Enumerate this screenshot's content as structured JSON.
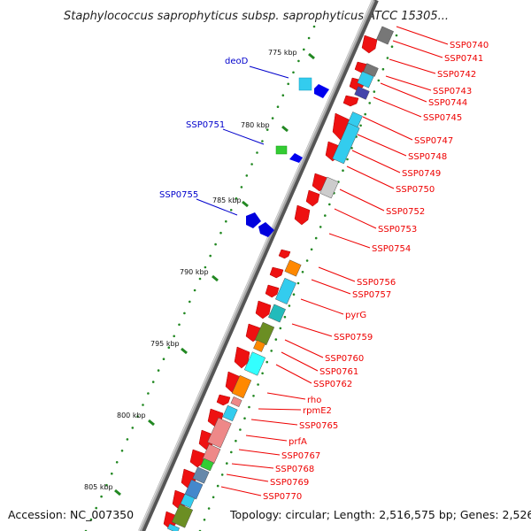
{
  "title": "Staphylococcus saprophyticus subsp. saprophyticus ATCC 15305...",
  "footer": {
    "accession": "Accession: NC_007350",
    "topology": "Topology: circular; Length: 2,516,575 bp; Genes: 2,526"
  },
  "colors": {
    "backbone": "#888888",
    "forward_label": "#0000cc",
    "reverse_label": "#ee0000",
    "tick": "#228822"
  },
  "kbp_ticks": [
    "775 kbp",
    "780 kbp",
    "785 kbp",
    "790 kbp",
    "795 kbp",
    "800 kbp",
    "805 kbp"
  ],
  "forward_labels": [
    "deoD",
    "SSP0751",
    "SSP0755"
  ],
  "reverse_labels": [
    "SSP0740",
    "SSP0741",
    "SSP0742",
    "SSP0743",
    "SSP0744",
    "SSP0745",
    "SSP0747",
    "SSP0748",
    "SSP0749",
    "SSP0750",
    "SSP0752",
    "SSP0753",
    "SSP0754",
    "SSP0756",
    "SSP0757",
    "pyrG",
    "SSP0759",
    "SSP0760",
    "SSP0761",
    "SSP0762",
    "rho",
    "rpmE2",
    "SSP0765",
    "prfA",
    "SSP0767",
    "SSP0768",
    "SSP0769",
    "SSP0770"
  ]
}
